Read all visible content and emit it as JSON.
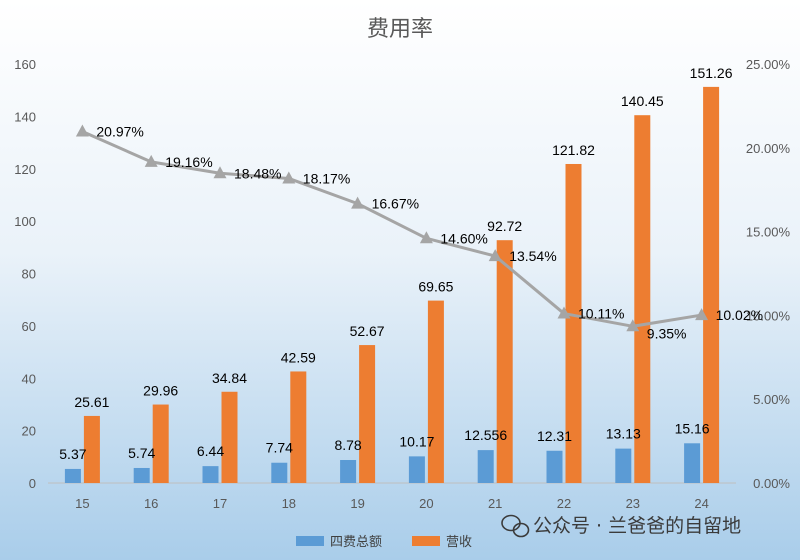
{
  "chart_data": {
    "type": "bar",
    "title": "费用率",
    "categories": [
      "15",
      "16",
      "17",
      "18",
      "19",
      "20",
      "21",
      "22",
      "23",
      "24"
    ],
    "series": [
      {
        "name": "四费总额",
        "type": "bar",
        "axis": "left",
        "color": "#5b9bd5",
        "values": [
          5.37,
          5.74,
          6.44,
          7.74,
          8.78,
          10.17,
          12.556,
          12.31,
          13.13,
          15.16
        ],
        "labels": [
          "5.37",
          "5.74",
          "6.44",
          "7.74",
          "8.78",
          "10.17",
          "12.556",
          "12.31",
          "13.13",
          "15.16"
        ]
      },
      {
        "name": "营收",
        "type": "bar",
        "axis": "left",
        "color": "#ed7d31",
        "values": [
          25.61,
          29.96,
          34.84,
          42.59,
          52.67,
          69.65,
          92.72,
          121.82,
          140.45,
          151.26
        ],
        "labels": [
          "25.61",
          "29.96",
          "34.84",
          "42.59",
          "52.67",
          "69.65",
          "92.72",
          "121.82",
          "140.45",
          "151.26"
        ]
      },
      {
        "type": "line",
        "axis": "right",
        "color": "#a5a5a5",
        "marker": "triangle",
        "values": [
          20.97,
          19.16,
          18.48,
          18.17,
          16.67,
          14.6,
          13.54,
          10.11,
          9.35,
          10.02
        ],
        "labels": [
          "20.97%",
          "19.16%",
          "18.48%",
          "18.17%",
          "16.67%",
          "14.60%",
          "13.54%",
          "10.11%",
          "9.35%",
          "10.02%"
        ]
      }
    ],
    "ylim": [
      0,
      160
    ],
    "yticks": [
      "0",
      "20",
      "40",
      "60",
      "80",
      "100",
      "120",
      "140",
      "160"
    ],
    "y2lim": [
      0,
      25
    ],
    "y2ticks": [
      "0.00%",
      "5.00%",
      "10.00%",
      "15.00%",
      "20.00%",
      "25.00%"
    ],
    "grid": false,
    "legend_position": "bottom"
  },
  "watermark": {
    "text": "公众号 · 兰爸爸的自留地",
    "icon": "wechat-icon"
  }
}
